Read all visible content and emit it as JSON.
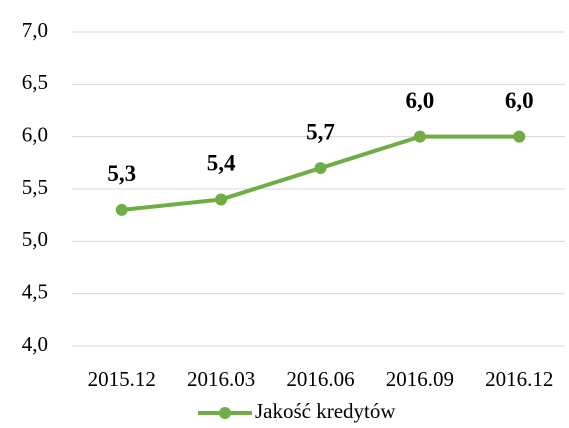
{
  "chart_data": {
    "type": "line",
    "categories": [
      "2015.12",
      "2016.03",
      "2016.06",
      "2016.09",
      "2016.12"
    ],
    "series": [
      {
        "name": "Jakość kredytów",
        "color": "#70ad47",
        "values": [
          5.3,
          5.4,
          5.7,
          6.0,
          6.0
        ],
        "value_labels": [
          "5,3",
          "5,4",
          "5,7",
          "6,0",
          "6,0"
        ]
      }
    ],
    "ylim": [
      4.0,
      7.0
    ],
    "yticks": [
      {
        "value": 4.0,
        "label": "4,0"
      },
      {
        "value": 4.5,
        "label": "4,5"
      },
      {
        "value": 5.0,
        "label": "5,0"
      },
      {
        "value": 5.5,
        "label": "5,5"
      },
      {
        "value": 6.0,
        "label": "6,0"
      },
      {
        "value": 6.5,
        "label": "6,5"
      },
      {
        "value": 7.0,
        "label": "7,0"
      }
    ],
    "grid": true,
    "legend": "bottom"
  }
}
